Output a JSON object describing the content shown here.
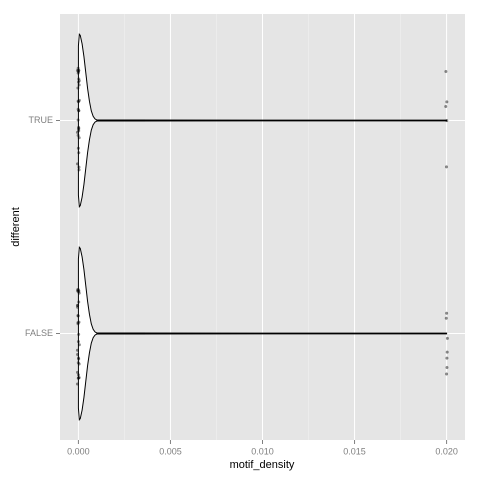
{
  "chart_data": {
    "type": "violin",
    "x_label": "motif_density",
    "y_label": "different",
    "categories": [
      "FALSE",
      "TRUE"
    ],
    "xlim": [
      -0.001,
      0.021
    ],
    "xticks": [
      {
        "value": 0,
        "label": "0.000"
      },
      {
        "value": 0.005,
        "label": "0.005"
      },
      {
        "value": 0.01,
        "label": "0.010"
      },
      {
        "value": 0.015,
        "label": "0.015"
      },
      {
        "value": 0.02,
        "label": "0.020"
      }
    ],
    "grid": true,
    "groups": [
      {
        "density_x": [
          0,
          5e-05,
          0.0001,
          0.0002,
          0.0003,
          0.0004,
          0.0005,
          0.0006,
          0.0007,
          0.0008,
          0.0009,
          0.001,
          0.02
        ],
        "density_width": [
          0.7,
          0.81,
          0.8,
          0.72,
          0.6,
          0.45,
          0.3,
          0.18,
          0.09,
          0.04,
          0.015,
          0.005,
          0.003
        ],
        "points": [
          0,
          0,
          0,
          0,
          0,
          0,
          0,
          0,
          0,
          0,
          0,
          0,
          0,
          0,
          0,
          0,
          0,
          0,
          0,
          0,
          0,
          0,
          0,
          0,
          0,
          0,
          0,
          0,
          0,
          0,
          0.02,
          0.02,
          0.02,
          0.02,
          0.02,
          0.02,
          0.02
        ]
      },
      {
        "density_x": [
          0,
          5e-05,
          0.0001,
          0.0002,
          0.0003,
          0.0004,
          0.0005,
          0.0006,
          0.0007,
          0.0008,
          0.0009,
          0.001,
          0.02
        ],
        "density_width": [
          0.7,
          0.81,
          0.8,
          0.72,
          0.6,
          0.45,
          0.3,
          0.18,
          0.09,
          0.04,
          0.015,
          0.005,
          0.003
        ],
        "points": [
          0,
          0,
          0,
          0,
          0,
          0,
          0,
          0,
          0,
          0,
          0,
          0,
          0,
          0,
          0,
          0,
          0,
          0,
          0,
          0,
          0,
          0,
          0,
          0,
          0,
          0,
          0,
          0,
          0,
          0,
          0.02,
          0.02,
          0.02,
          0.02,
          0.02
        ]
      }
    ]
  }
}
